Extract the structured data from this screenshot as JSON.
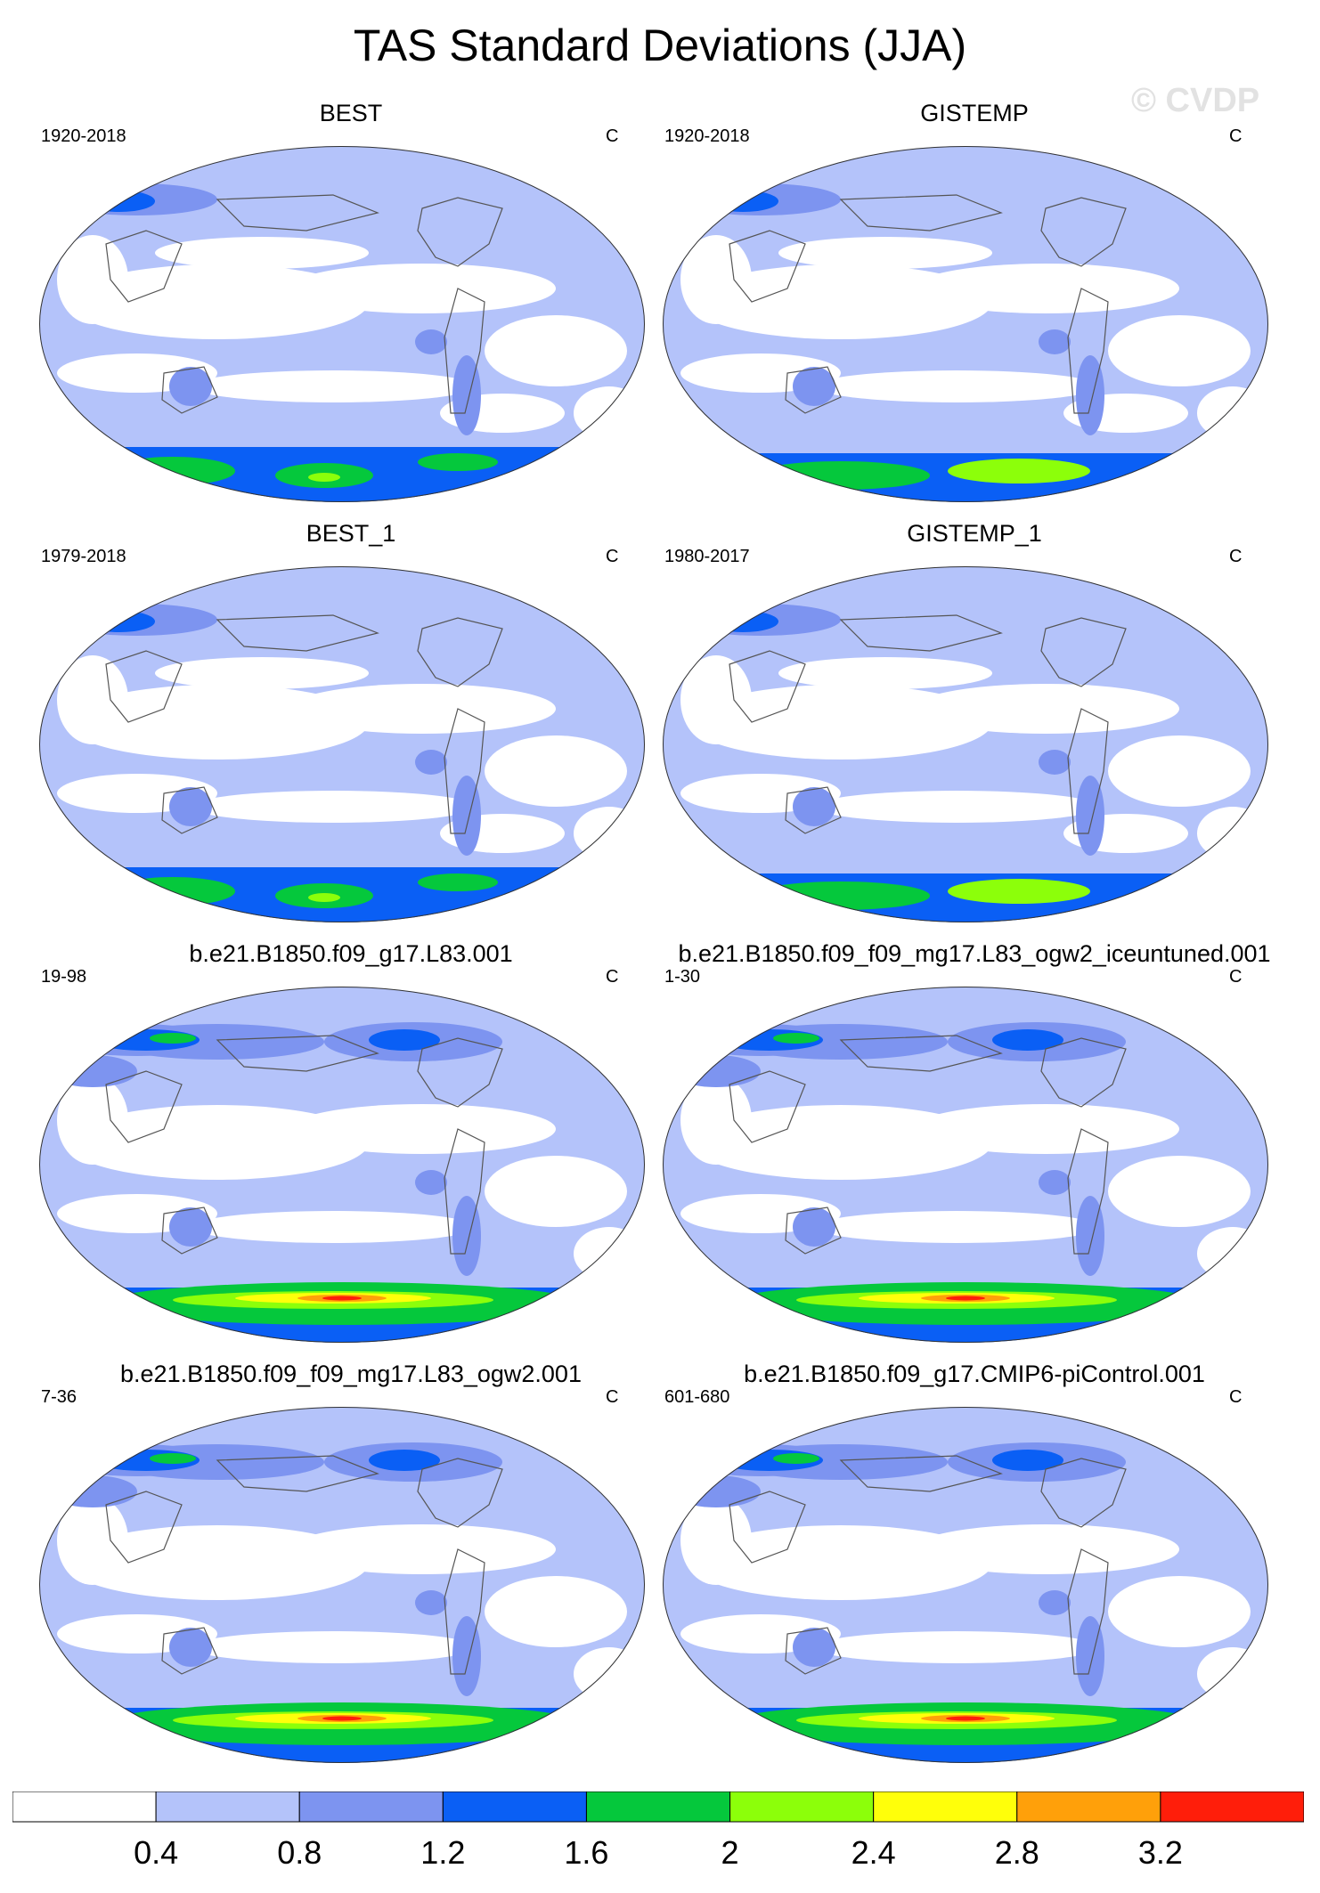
{
  "title": "TAS Standard Deviations (JJA)",
  "watermark": "© CVDP",
  "panels": [
    {
      "title": "BEST",
      "period": "1920-2018",
      "unit": "C",
      "variant": "obs"
    },
    {
      "title": "GISTEMP",
      "period": "1920-2018",
      "unit": "C",
      "variant": "gis"
    },
    {
      "title": "BEST_1",
      "period": "1979-2018",
      "unit": "C",
      "variant": "obs"
    },
    {
      "title": "GISTEMP_1",
      "period": "1980-2017",
      "unit": "C",
      "variant": "gis"
    },
    {
      "title": "b.e21.B1850.f09_g17.L83.001",
      "period": "19-98",
      "unit": "C",
      "variant": "model"
    },
    {
      "title": "b.e21.B1850.f09_f09_mg17.L83_ogw2_iceuntuned.001",
      "period": "1-30",
      "unit": "C",
      "variant": "model"
    },
    {
      "title": "b.e21.B1850.f09_f09_mg17.L83_ogw2.001",
      "period": "7-36",
      "unit": "C",
      "variant": "model"
    },
    {
      "title": "b.e21.B1850.f09_g17.CMIP6-piControl.001",
      "period": "601-680",
      "unit": "C",
      "variant": "model"
    }
  ],
  "colorbar": {
    "levels": [
      "0.4",
      "0.8",
      "1.2",
      "1.6",
      "2",
      "2.4",
      "2.8",
      "3.2"
    ],
    "colors": [
      "#ffffff",
      "#b4c3fa",
      "#7d94f0",
      "#0a5ff5",
      "#05c83c",
      "#8cff0a",
      "#ffff0a",
      "#ffa00a",
      "#ff1e0a"
    ]
  }
}
